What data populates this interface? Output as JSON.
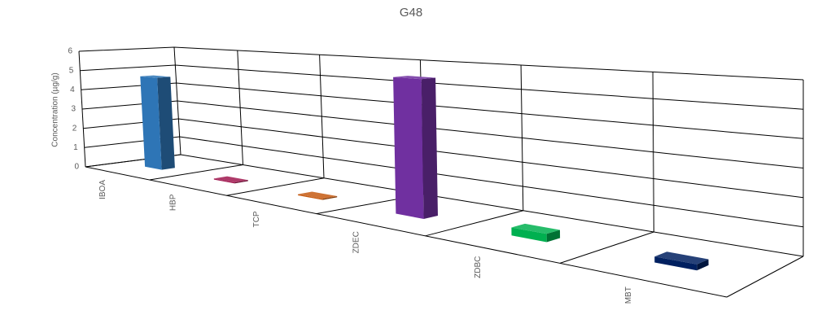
{
  "chart_data": {
    "type": "bar3d",
    "title": "G48",
    "y_label": "Concentration (µg/g)",
    "categories": [
      "IBOA",
      "HBP",
      "TCP",
      "ZDEC",
      "ZDBC",
      "MBT"
    ],
    "values": [
      4.7,
      0.05,
      0.05,
      5.6,
      0.3,
      0.2
    ],
    "colors": [
      "#2e75b6",
      "#a0174f",
      "#c55a11",
      "#7030a0",
      "#00b050",
      "#002060"
    ],
    "ylim": [
      0,
      6
    ],
    "yticks": [
      0,
      1,
      2,
      3,
      4,
      5,
      6
    ],
    "grid": true
  }
}
